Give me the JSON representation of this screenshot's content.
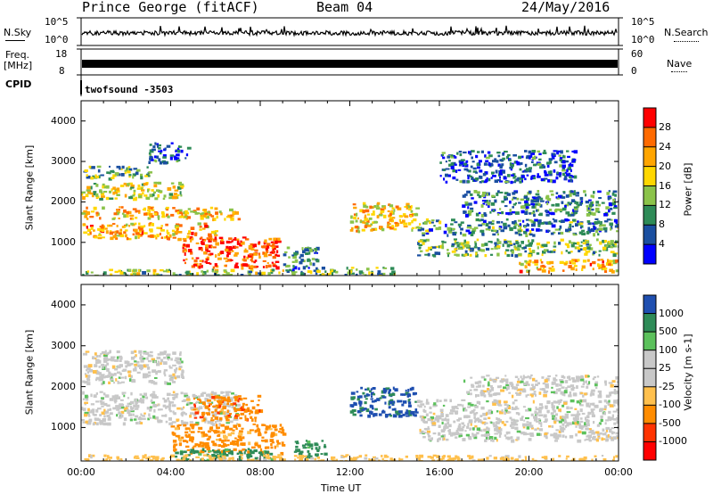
{
  "header": {
    "station": "Prince George (fitACF)",
    "beam": "Beam 04",
    "date": "24/May/2016"
  },
  "strip_panels": {
    "nsky_label": "N.Sky",
    "nsky_ticks": [
      "10^5",
      "10^0"
    ],
    "nsearch_label": "N.Search",
    "nsearch_ticks": [
      "10^5",
      "10^0"
    ],
    "freq_label_1": "Freq.",
    "freq_label_2": "[MHz]",
    "freq_ticks": [
      "18",
      "8"
    ],
    "nave_label": "Nave",
    "nave_ticks": [
      "60",
      "0"
    ],
    "cpid_label": "CPID",
    "cpid_value": "twofsound  -3503"
  },
  "time_axis": {
    "label": "Time UT",
    "ticks": [
      "00:00",
      "04:00",
      "08:00",
      "12:00",
      "16:00",
      "20:00",
      "00:00"
    ]
  },
  "chart_data": [
    {
      "type": "heatmap",
      "panel": "power",
      "ylabel": "Slant Range [km]",
      "yticks": [
        1000,
        2000,
        3000,
        4000
      ],
      "ylim": [
        180,
        4500
      ],
      "xlim_hours": [
        0,
        24
      ],
      "colorbar_label": "Power [dB]",
      "colorbar_ticks": [
        "28",
        "24",
        "20",
        "16",
        "12",
        "8",
        "4"
      ],
      "colorbar_colors": [
        "#ff0000",
        "#ff6a00",
        "#ffa500",
        "#ffd700",
        "#8bc34a",
        "#2e8b57",
        "#1a4fa0",
        "#0000ff"
      ],
      "scatter_regions": [
        {
          "t": [
            0.0,
            9.0
          ],
          "r": [
            200,
            350
          ],
          "level": 14
        },
        {
          "t": [
            4.5,
            8.8
          ],
          "r": [
            400,
            1150
          ],
          "level": 27
        },
        {
          "t": [
            0.0,
            6.0
          ],
          "r": [
            1100,
            1500
          ],
          "level": 22
        },
        {
          "t": [
            0.0,
            7.0
          ],
          "r": [
            1600,
            1900
          ],
          "level": 20
        },
        {
          "t": [
            0.0,
            4.5
          ],
          "r": [
            2100,
            2500
          ],
          "level": 17
        },
        {
          "t": [
            0.0,
            3.0
          ],
          "r": [
            2600,
            2900
          ],
          "level": 11
        },
        {
          "t": [
            3.0,
            4.8
          ],
          "r": [
            3000,
            3500
          ],
          "level": 6
        },
        {
          "t": [
            9.0,
            10.5
          ],
          "r": [
            250,
            900
          ],
          "level": 9
        },
        {
          "t": [
            10.0,
            14.0
          ],
          "r": [
            200,
            400
          ],
          "level": 13
        },
        {
          "t": [
            12.0,
            15.0
          ],
          "r": [
            1300,
            2000
          ],
          "level": 19
        },
        {
          "t": [
            15.0,
            24.0
          ],
          "r": [
            700,
            1100
          ],
          "level": 13
        },
        {
          "t": [
            15.0,
            24.0
          ],
          "r": [
            1200,
            1600
          ],
          "level": 10
        },
        {
          "t": [
            17.0,
            24.0
          ],
          "r": [
            1700,
            2300
          ],
          "level": 9
        },
        {
          "t": [
            19.5,
            24.0
          ],
          "r": [
            300,
            600
          ],
          "level": 22
        },
        {
          "t": [
            16.0,
            22.0
          ],
          "r": [
            2500,
            3300
          ],
          "level": 6
        }
      ]
    },
    {
      "type": "heatmap",
      "panel": "velocity",
      "ylabel": "Slant Range [km]",
      "yticks": [
        1000,
        2000,
        3000,
        4000
      ],
      "ylim": [
        180,
        4500
      ],
      "xlim_hours": [
        0,
        24
      ],
      "colorbar_label": "Velocity [m s-1]",
      "colorbar_ticks": [
        "1000",
        "500",
        "100",
        "25",
        "-25",
        "-100",
        "-500",
        "-1000"
      ],
      "colorbar_colors": [
        "#1f4fb0",
        "#2e8b57",
        "#5cc15c",
        "#c8c8c8",
        "#c8c8c8",
        "#ffc04d",
        "#ff8c00",
        "#ff3300",
        "#ff0000"
      ],
      "scatter_regions": [
        {
          "t": [
            0.0,
            7.0
          ],
          "r": [
            1100,
            1900
          ],
          "level": 0
        },
        {
          "t": [
            0.0,
            4.5
          ],
          "r": [
            2100,
            2900
          ],
          "level": 0
        },
        {
          "t": [
            4.0,
            9.0
          ],
          "r": [
            400,
            1100
          ],
          "level": -150
        },
        {
          "t": [
            5.0,
            8.0
          ],
          "r": [
            1200,
            1800
          ],
          "level": -400
        },
        {
          "t": [
            4.0,
            8.5
          ],
          "r": [
            200,
            500
          ],
          "level": 150
        },
        {
          "t": [
            9.5,
            11.0
          ],
          "r": [
            300,
            700
          ],
          "level": 150
        },
        {
          "t": [
            12.0,
            15.0
          ],
          "r": [
            1300,
            2000
          ],
          "level": 600
        },
        {
          "t": [
            15.0,
            24.0
          ],
          "r": [
            700,
            1700
          ],
          "level": 0
        },
        {
          "t": [
            17.0,
            24.0
          ],
          "r": [
            1800,
            2300
          ],
          "level": 0
        },
        {
          "t": [
            0.0,
            24.0
          ],
          "r": [
            200,
            350
          ],
          "level": -50
        }
      ]
    }
  ]
}
